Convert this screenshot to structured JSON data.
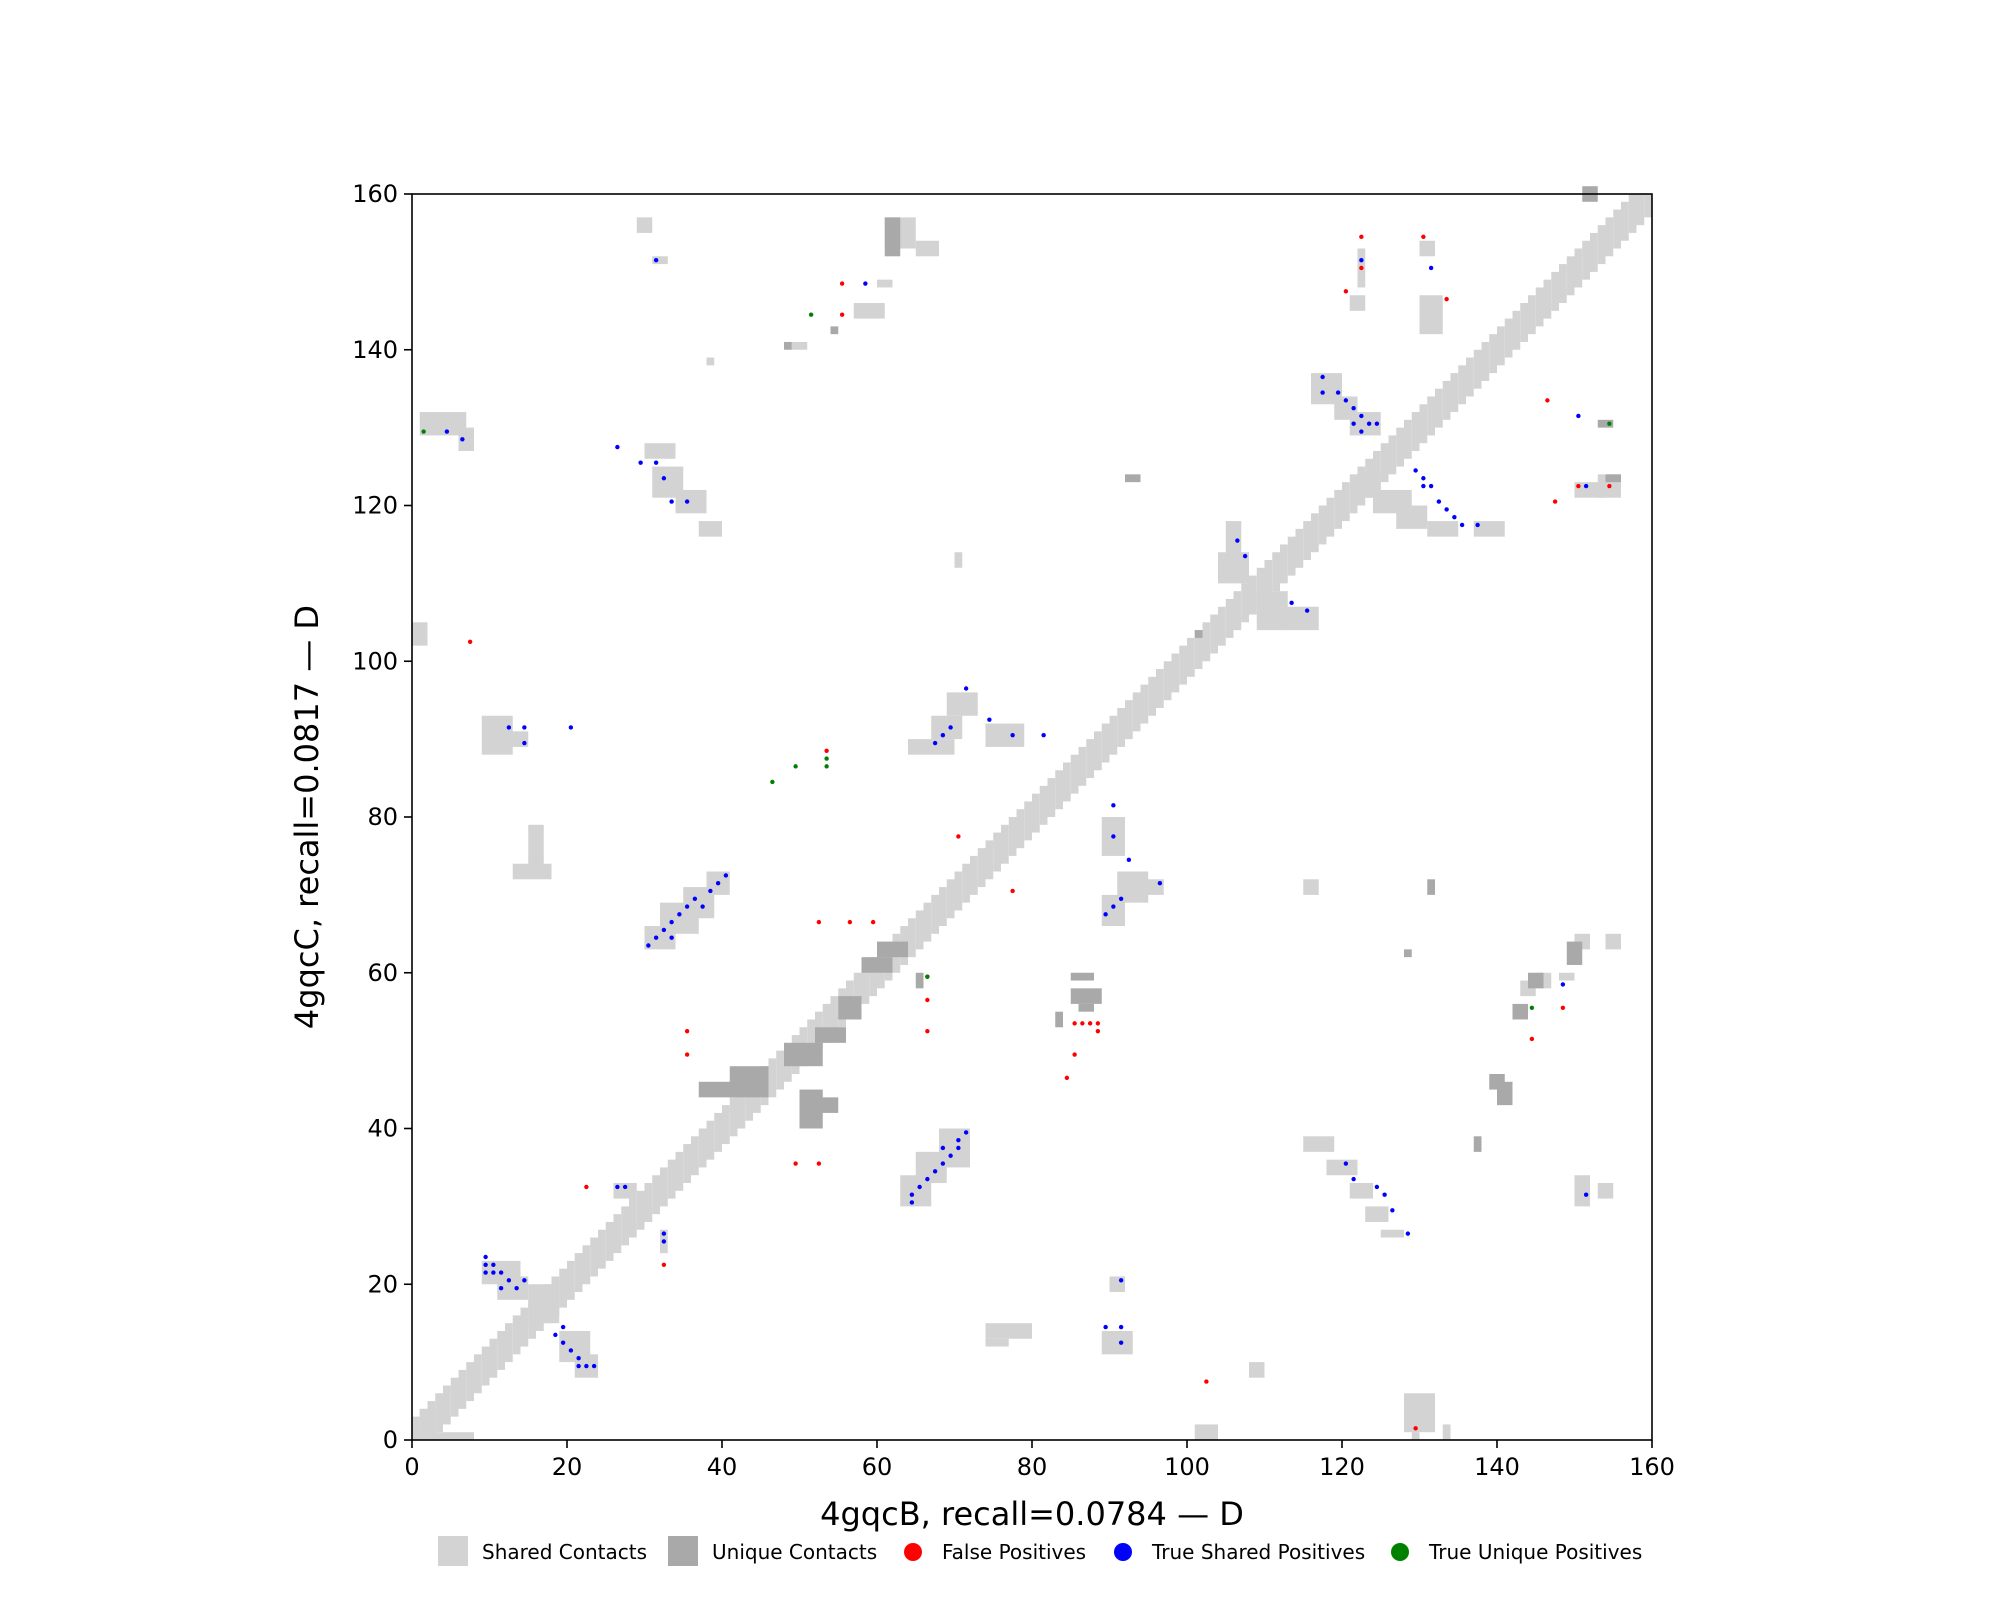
{
  "chart_data": {
    "type": "scatter",
    "title": "",
    "xlabel": "4gqcB, recall=0.0784 — D",
    "ylabel": "4gqcC, recall=0.0817 — D",
    "xlim": [
      0,
      160
    ],
    "ylim": [
      0,
      160
    ],
    "x_ticks": [
      0,
      20,
      40,
      60,
      80,
      100,
      120,
      140,
      160
    ],
    "y_ticks": [
      0,
      20,
      40,
      60,
      80,
      100,
      120,
      140,
      160
    ],
    "grid": false,
    "legend_position": "bottom",
    "legend": [
      {
        "label": "Shared Contacts",
        "marker": "square",
        "color": "#d3d3d3"
      },
      {
        "label": "Unique Contacts",
        "marker": "square",
        "color": "#a9a9a9"
      },
      {
        "label": "False Positives",
        "marker": "circle",
        "color": "#ff0000"
      },
      {
        "label": "True Shared Positives",
        "marker": "circle",
        "color": "#0000ff"
      },
      {
        "label": "True Unique Positives",
        "marker": "circle",
        "color": "#008000"
      }
    ],
    "colors": {
      "shared": "#d3d3d3",
      "unique": "#a9a9a9",
      "false_pos": "#ff0000",
      "true_shared": "#0000ff",
      "true_unique": "#008000"
    },
    "diagonal_band": {
      "from": 0,
      "to": 160,
      "half_width": 2
    },
    "shared_blocks": [
      [
        1,
        129,
        7,
        132
      ],
      [
        6,
        127,
        8,
        130
      ],
      [
        30,
        126,
        34,
        128
      ],
      [
        31,
        121,
        35,
        125
      ],
      [
        34,
        119,
        38,
        122
      ],
      [
        37,
        116,
        40,
        118
      ],
      [
        9,
        88,
        13,
        93
      ],
      [
        12,
        89,
        15,
        91
      ],
      [
        15,
        73,
        17,
        79
      ],
      [
        13,
        72,
        18,
        74
      ],
      [
        30,
        63,
        34,
        66
      ],
      [
        32,
        65,
        37,
        69
      ],
      [
        35,
        67,
        39,
        71
      ],
      [
        38,
        70,
        41,
        73
      ],
      [
        9,
        20,
        14,
        23
      ],
      [
        11,
        18,
        15,
        21
      ],
      [
        19,
        10,
        23,
        14
      ],
      [
        21,
        8,
        24,
        11
      ],
      [
        15,
        15,
        19,
        20
      ],
      [
        32,
        24,
        33,
        27
      ],
      [
        26,
        31,
        29,
        33
      ],
      [
        63,
        30,
        67,
        34
      ],
      [
        65,
        33,
        69,
        37
      ],
      [
        68,
        35,
        72,
        40
      ],
      [
        64,
        88,
        70,
        90
      ],
      [
        67,
        90,
        71,
        93
      ],
      [
        69,
        93,
        73,
        96
      ],
      [
        74,
        89,
        79,
        92
      ],
      [
        89,
        66,
        92,
        70
      ],
      [
        91,
        69,
        95,
        73
      ],
      [
        93,
        70,
        97,
        72
      ],
      [
        89,
        75,
        92,
        80
      ],
      [
        115,
        37,
        119,
        39
      ],
      [
        118,
        34,
        122,
        36
      ],
      [
        121,
        31,
        124,
        33
      ],
      [
        123,
        28,
        126,
        30
      ],
      [
        125,
        26,
        128,
        27
      ],
      [
        116,
        133,
        120,
        137
      ],
      [
        119,
        131,
        122,
        134
      ],
      [
        121,
        129,
        125,
        132
      ],
      [
        122,
        121,
        125,
        124
      ],
      [
        124,
        119,
        129,
        122
      ],
      [
        127,
        117,
        131,
        120
      ],
      [
        131,
        116,
        135,
        118
      ],
      [
        137,
        116,
        141,
        118
      ],
      [
        104,
        110,
        108,
        114
      ],
      [
        105,
        113,
        107,
        118
      ],
      [
        109,
        104,
        113,
        109
      ],
      [
        112,
        104,
        117,
        107
      ],
      [
        122,
        148,
        123,
        153
      ],
      [
        121,
        145,
        123,
        147
      ],
      [
        130,
        152,
        132,
        154
      ],
      [
        130,
        142,
        133,
        147
      ],
      [
        153,
        121,
        156,
        124
      ],
      [
        150,
        121,
        154,
        123
      ],
      [
        153,
        31,
        155,
        33
      ],
      [
        150,
        30,
        152,
        34
      ],
      [
        108,
        8,
        110,
        10
      ],
      [
        102,
        0,
        103,
        1
      ],
      [
        101,
        0,
        104,
        2
      ],
      [
        89,
        11,
        93,
        14
      ],
      [
        90,
        19,
        92,
        21
      ],
      [
        74,
        13,
        80,
        15
      ],
      [
        74,
        12,
        77,
        13
      ],
      [
        70,
        112,
        71,
        114
      ],
      [
        115,
        70,
        117,
        72
      ],
      [
        128,
        1,
        132,
        6
      ],
      [
        133,
        0,
        134,
        2
      ],
      [
        129,
        0,
        130,
        1
      ],
      [
        1,
        0,
        8,
        1
      ],
      [
        1,
        0,
        3,
        4
      ],
      [
        0,
        102,
        2,
        105
      ],
      [
        29,
        155,
        31,
        157
      ],
      [
        31,
        151,
        33,
        152
      ],
      [
        60,
        148,
        62,
        149
      ],
      [
        61,
        153,
        65,
        157
      ],
      [
        65,
        152,
        68,
        154
      ],
      [
        57,
        144,
        61,
        146
      ],
      [
        49,
        140,
        51,
        141
      ],
      [
        38,
        138,
        39,
        139
      ],
      [
        145,
        58,
        147,
        60
      ],
      [
        143,
        57,
        145,
        59
      ],
      [
        148,
        59,
        150,
        60
      ],
      [
        150,
        63,
        152,
        65
      ],
      [
        154,
        63,
        156,
        65
      ]
    ],
    "unique_blocks": [
      [
        37,
        44,
        46,
        46
      ],
      [
        41,
        45,
        46,
        48
      ],
      [
        50,
        40,
        53,
        45
      ],
      [
        51,
        42,
        55,
        44
      ],
      [
        48,
        48,
        53,
        51
      ],
      [
        52,
        51,
        56,
        53
      ],
      [
        55,
        54,
        58,
        57
      ],
      [
        58,
        60,
        62,
        62
      ],
      [
        60,
        62,
        64,
        64
      ],
      [
        85,
        56,
        89,
        58
      ],
      [
        86,
        55,
        88,
        56
      ],
      [
        85,
        59,
        88,
        60
      ],
      [
        83,
        53,
        84,
        55
      ],
      [
        65,
        58,
        66,
        60
      ],
      [
        139,
        45,
        141,
        47
      ],
      [
        140,
        43,
        142,
        46
      ],
      [
        137,
        37,
        138,
        39
      ],
      [
        144,
        58,
        146,
        60
      ],
      [
        142,
        54,
        144,
        56
      ],
      [
        149,
        61,
        151,
        64
      ],
      [
        154,
        123,
        156,
        124
      ],
      [
        153,
        130,
        155,
        131
      ],
      [
        61,
        152,
        63,
        157
      ],
      [
        48,
        140,
        49,
        141
      ],
      [
        54,
        142,
        55,
        143
      ],
      [
        92,
        123,
        94,
        124
      ],
      [
        101,
        103,
        102,
        104
      ],
      [
        151,
        159,
        153,
        161
      ],
      [
        128,
        62,
        129,
        63
      ],
      [
        131,
        70,
        132,
        72
      ]
    ],
    "false_positives": [
      [
        7,
        102
      ],
      [
        22,
        32
      ],
      [
        32,
        22
      ],
      [
        35,
        52
      ],
      [
        35,
        49
      ],
      [
        49,
        35
      ],
      [
        52,
        35
      ],
      [
        52,
        66
      ],
      [
        56,
        66
      ],
      [
        59,
        66
      ],
      [
        53,
        88
      ],
      [
        55,
        148
      ],
      [
        55,
        144
      ],
      [
        66,
        59
      ],
      [
        66,
        56
      ],
      [
        66,
        52
      ],
      [
        70,
        77
      ],
      [
        77,
        70
      ],
      [
        84,
        46
      ],
      [
        85,
        53
      ],
      [
        86,
        53
      ],
      [
        87,
        53
      ],
      [
        88,
        53
      ],
      [
        85,
        49
      ],
      [
        88,
        52
      ],
      [
        102,
        7
      ],
      [
        122,
        154
      ],
      [
        122,
        150
      ],
      [
        120,
        147
      ],
      [
        130,
        154
      ],
      [
        133,
        146
      ],
      [
        129,
        1
      ],
      [
        146,
        133
      ],
      [
        147,
        120
      ],
      [
        150,
        122
      ],
      [
        154,
        122
      ],
      [
        144,
        51
      ],
      [
        148,
        55
      ]
    ],
    "true_shared": [
      [
        4,
        129
      ],
      [
        6,
        128
      ],
      [
        26,
        127
      ],
      [
        29,
        125
      ],
      [
        31,
        125
      ],
      [
        32,
        123
      ],
      [
        33,
        120
      ],
      [
        35,
        120
      ],
      [
        31,
        151
      ],
      [
        58,
        148
      ],
      [
        9,
        23
      ],
      [
        9,
        22
      ],
      [
        9,
        21
      ],
      [
        10,
        22
      ],
      [
        10,
        21
      ],
      [
        11,
        21
      ],
      [
        11,
        19
      ],
      [
        12,
        20
      ],
      [
        13,
        19
      ],
      [
        14,
        20
      ],
      [
        18,
        13
      ],
      [
        19,
        14
      ],
      [
        19,
        12
      ],
      [
        20,
        11
      ],
      [
        21,
        10
      ],
      [
        21,
        9
      ],
      [
        22,
        9
      ],
      [
        23,
        9
      ],
      [
        26,
        32
      ],
      [
        27,
        32
      ],
      [
        32,
        26
      ],
      [
        32,
        25
      ],
      [
        12,
        91
      ],
      [
        14,
        91
      ],
      [
        14,
        89
      ],
      [
        20,
        91
      ],
      [
        30,
        63
      ],
      [
        31,
        64
      ],
      [
        32,
        65
      ],
      [
        33,
        66
      ],
      [
        33,
        64
      ],
      [
        34,
        67
      ],
      [
        35,
        68
      ],
      [
        36,
        69
      ],
      [
        37,
        68
      ],
      [
        38,
        70
      ],
      [
        39,
        71
      ],
      [
        40,
        72
      ],
      [
        64,
        30
      ],
      [
        64,
        31
      ],
      [
        65,
        32
      ],
      [
        66,
        33
      ],
      [
        67,
        34
      ],
      [
        68,
        35
      ],
      [
        68,
        37
      ],
      [
        69,
        36
      ],
      [
        70,
        37
      ],
      [
        70,
        38
      ],
      [
        71,
        39
      ],
      [
        67,
        89
      ],
      [
        68,
        90
      ],
      [
        69,
        91
      ],
      [
        71,
        96
      ],
      [
        74,
        92
      ],
      [
        77,
        90
      ],
      [
        81,
        90
      ],
      [
        89,
        67
      ],
      [
        90,
        68
      ],
      [
        91,
        69
      ],
      [
        90,
        77
      ],
      [
        90,
        81
      ],
      [
        92,
        74
      ],
      [
        96,
        71
      ],
      [
        89,
        14
      ],
      [
        91,
        14
      ],
      [
        91,
        12
      ],
      [
        91,
        20
      ],
      [
        106,
        115
      ],
      [
        107,
        113
      ],
      [
        113,
        107
      ],
      [
        115,
        106
      ],
      [
        117,
        136
      ],
      [
        117,
        134
      ],
      [
        119,
        134
      ],
      [
        120,
        133
      ],
      [
        121,
        132
      ],
      [
        121,
        130
      ],
      [
        122,
        131
      ],
      [
        122,
        129
      ],
      [
        123,
        130
      ],
      [
        124,
        130
      ],
      [
        129,
        124
      ],
      [
        130,
        123
      ],
      [
        130,
        122
      ],
      [
        131,
        122
      ],
      [
        132,
        120
      ],
      [
        133,
        119
      ],
      [
        134,
        118
      ],
      [
        135,
        117
      ],
      [
        137,
        117
      ],
      [
        122,
        151
      ],
      [
        131,
        150
      ],
      [
        150,
        131
      ],
      [
        151,
        122
      ],
      [
        120,
        35
      ],
      [
        121,
        33
      ],
      [
        124,
        32
      ],
      [
        125,
        31
      ],
      [
        126,
        29
      ],
      [
        128,
        26
      ],
      [
        151,
        31
      ],
      [
        148,
        58
      ]
    ],
    "true_unique": [
      [
        1,
        129
      ],
      [
        46,
        84
      ],
      [
        49,
        86
      ],
      [
        51,
        144
      ],
      [
        53,
        87
      ],
      [
        53,
        86
      ],
      [
        66,
        59
      ],
      [
        144,
        55
      ],
      [
        154,
        130
      ]
    ]
  }
}
